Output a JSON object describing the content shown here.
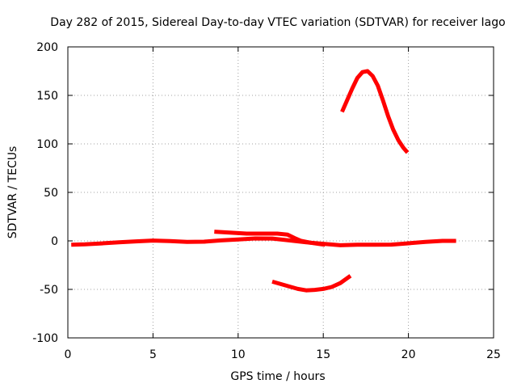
{
  "chart_data": {
    "type": "line",
    "title": "Day 282 of 2015, Sidereal Day-to-day VTEC variation (SDTVAR) for receiver Iago",
    "xlabel": "GPS time / hours",
    "ylabel": "SDTVAR / TECUs",
    "xlim": [
      0,
      25
    ],
    "ylim": [
      -100,
      200
    ],
    "xticks": [
      0,
      5,
      10,
      15,
      20,
      25
    ],
    "yticks": [
      -100,
      -50,
      0,
      50,
      100,
      150,
      200
    ],
    "xtick_labels": [
      "0",
      "5",
      "10",
      "15",
      "20",
      "25"
    ],
    "ytick_labels": [
      "-100",
      "-50",
      "0",
      "50",
      "100",
      "150",
      "200"
    ],
    "grid": true,
    "series_color": "#ff0000",
    "series": [
      {
        "points": [
          [
            0.2,
            -4
          ],
          [
            1,
            -3.6
          ],
          [
            2,
            -2.6
          ],
          [
            3,
            -1.5
          ],
          [
            4,
            -0.5
          ],
          [
            5,
            0.3
          ],
          [
            6,
            -0.2
          ],
          [
            7,
            -1
          ],
          [
            8,
            -0.8
          ],
          [
            9,
            0.5
          ],
          [
            10,
            1.5
          ],
          [
            11,
            2.5
          ],
          [
            12,
            2.4
          ],
          [
            13,
            0.5
          ],
          [
            14,
            -1.5
          ],
          [
            15,
            -3
          ],
          [
            16,
            -4.5
          ],
          [
            17,
            -4
          ],
          [
            18,
            -4
          ],
          [
            19,
            -3.8
          ],
          [
            20,
            -2.5
          ],
          [
            21,
            -1
          ],
          [
            22,
            0
          ],
          [
            22.8,
            0
          ]
        ]
      },
      {
        "points": [
          [
            8.6,
            9.5
          ],
          [
            9.5,
            8.5
          ],
          [
            10.5,
            7.5
          ],
          [
            11.5,
            7.5
          ],
          [
            12.3,
            7.5
          ],
          [
            12.9,
            6.5
          ],
          [
            13.3,
            3
          ],
          [
            13.7,
            0
          ],
          [
            14.3,
            -2
          ],
          [
            14.7,
            -3
          ],
          [
            15.1,
            -4
          ]
        ]
      },
      {
        "points": [
          [
            12,
            -42
          ],
          [
            12.5,
            -44.5
          ],
          [
            13,
            -47
          ],
          [
            13.5,
            -49.5
          ],
          [
            14,
            -51
          ],
          [
            14.5,
            -50.5
          ],
          [
            15,
            -49.5
          ],
          [
            15.5,
            -47.5
          ],
          [
            16,
            -43.5
          ],
          [
            16.6,
            -36
          ]
        ]
      },
      {
        "points": [
          [
            16.1,
            133
          ],
          [
            16.4,
            145
          ],
          [
            16.7,
            157
          ],
          [
            17,
            168
          ],
          [
            17.3,
            174
          ],
          [
            17.6,
            175
          ],
          [
            17.9,
            170
          ],
          [
            18.2,
            160
          ],
          [
            18.5,
            145
          ],
          [
            18.8,
            129
          ],
          [
            19.1,
            115
          ],
          [
            19.4,
            104
          ],
          [
            19.7,
            96
          ],
          [
            19.95,
            91
          ]
        ]
      }
    ]
  }
}
